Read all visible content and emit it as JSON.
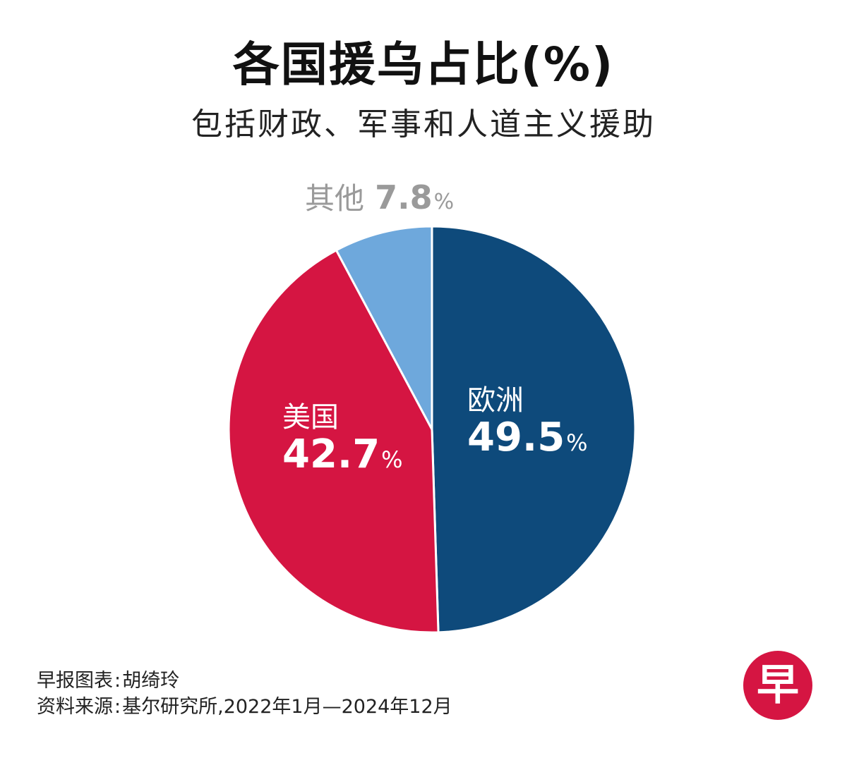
{
  "title": "各国援乌占比(%)",
  "subtitle": "包括财政、军事和人道主义援助",
  "chart_data": {
    "type": "pie",
    "title": "各国援乌占比(%)",
    "subtitle": "包括财政、军事和人道主义援助",
    "unit": "%",
    "slices": [
      {
        "name": "欧洲",
        "value": 49.5,
        "value_label": "49.5",
        "color": "#0e4a7b"
      },
      {
        "name": "美国",
        "value": 42.7,
        "value_label": "42.7",
        "color": "#d51542"
      },
      {
        "name": "其他",
        "value": 7.8,
        "value_label": "7.8",
        "color": "#6ea8dc"
      }
    ],
    "start": "12 o'clock",
    "direction": "clockwise"
  },
  "footer": {
    "credit_label": "早报图表",
    "credit_name": "胡绮玲",
    "source_label": "资料来源",
    "source_text": "基尔研究所,2022年1月—2024年12月"
  },
  "logo": {
    "text": "早",
    "color": "#d51542"
  }
}
